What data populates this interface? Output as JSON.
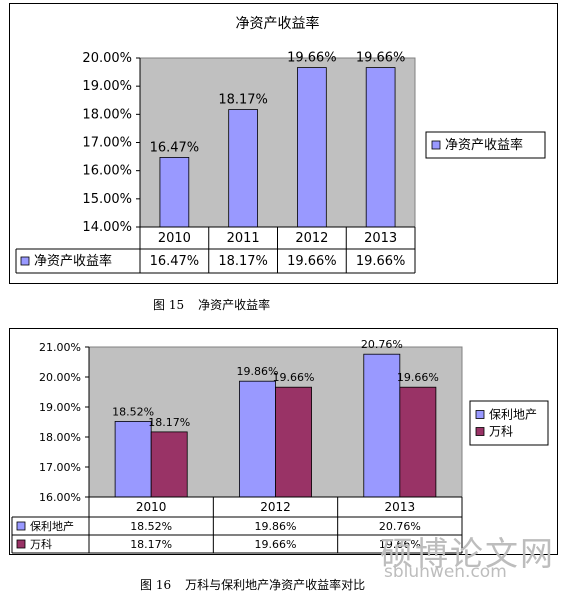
{
  "chart_data": [
    {
      "type": "bar",
      "title": "净资产收益率",
      "categories": [
        "2010",
        "2011",
        "2012",
        "2013"
      ],
      "series": [
        {
          "name": "净资产收益率",
          "values": [
            16.47,
            18.17,
            19.66,
            19.66
          ],
          "labels": [
            "16.47%",
            "18.17%",
            "19.66%",
            "19.66%"
          ],
          "table_labels": [
            "16.47%",
            "18.17%",
            "19.66%",
            "19.66%"
          ],
          "color": "#9999ff"
        }
      ],
      "ylim": [
        14,
        20
      ],
      "y_ticks": [
        "14.00%",
        "15.00%",
        "16.00%",
        "17.00%",
        "18.00%",
        "19.00%",
        "20.00%"
      ],
      "grid": false,
      "legend": "right",
      "data_table": true,
      "plot_background": "#c0c0c0"
    },
    {
      "type": "bar",
      "title": "",
      "categories": [
        "2010",
        "2012",
        "2013"
      ],
      "series": [
        {
          "name": "保利地产",
          "values": [
            18.52,
            19.86,
            20.76
          ],
          "labels": [
            "18.52%",
            "19.86%",
            "20.76%"
          ],
          "table_labels": [
            "18.52%",
            "19.86%",
            "20.76%"
          ],
          "color": "#9999ff"
        },
        {
          "name": "万科",
          "values": [
            18.17,
            19.66,
            19.66
          ],
          "labels": [
            "18.17%",
            "19.66%",
            "19.66%"
          ],
          "table_labels": [
            "18.17%",
            "19.66%",
            "19.66%"
          ],
          "color": "#993366"
        }
      ],
      "ylim": [
        16,
        21
      ],
      "y_ticks": [
        "16.00%",
        "17.00%",
        "18.00%",
        "19.00%",
        "20.00%",
        "21.00%"
      ],
      "grid": false,
      "legend": "right",
      "data_table": true,
      "plot_background": "#c0c0c0"
    }
  ],
  "captions": {
    "fig15_number": "图 15",
    "fig15_text": "净资产收益率",
    "fig16_number": "图 16",
    "fig16_text": "万科与保利地产净资产收益率对比"
  },
  "watermark": {
    "text": "硕博论文网",
    "url": "sblunwen.com"
  }
}
